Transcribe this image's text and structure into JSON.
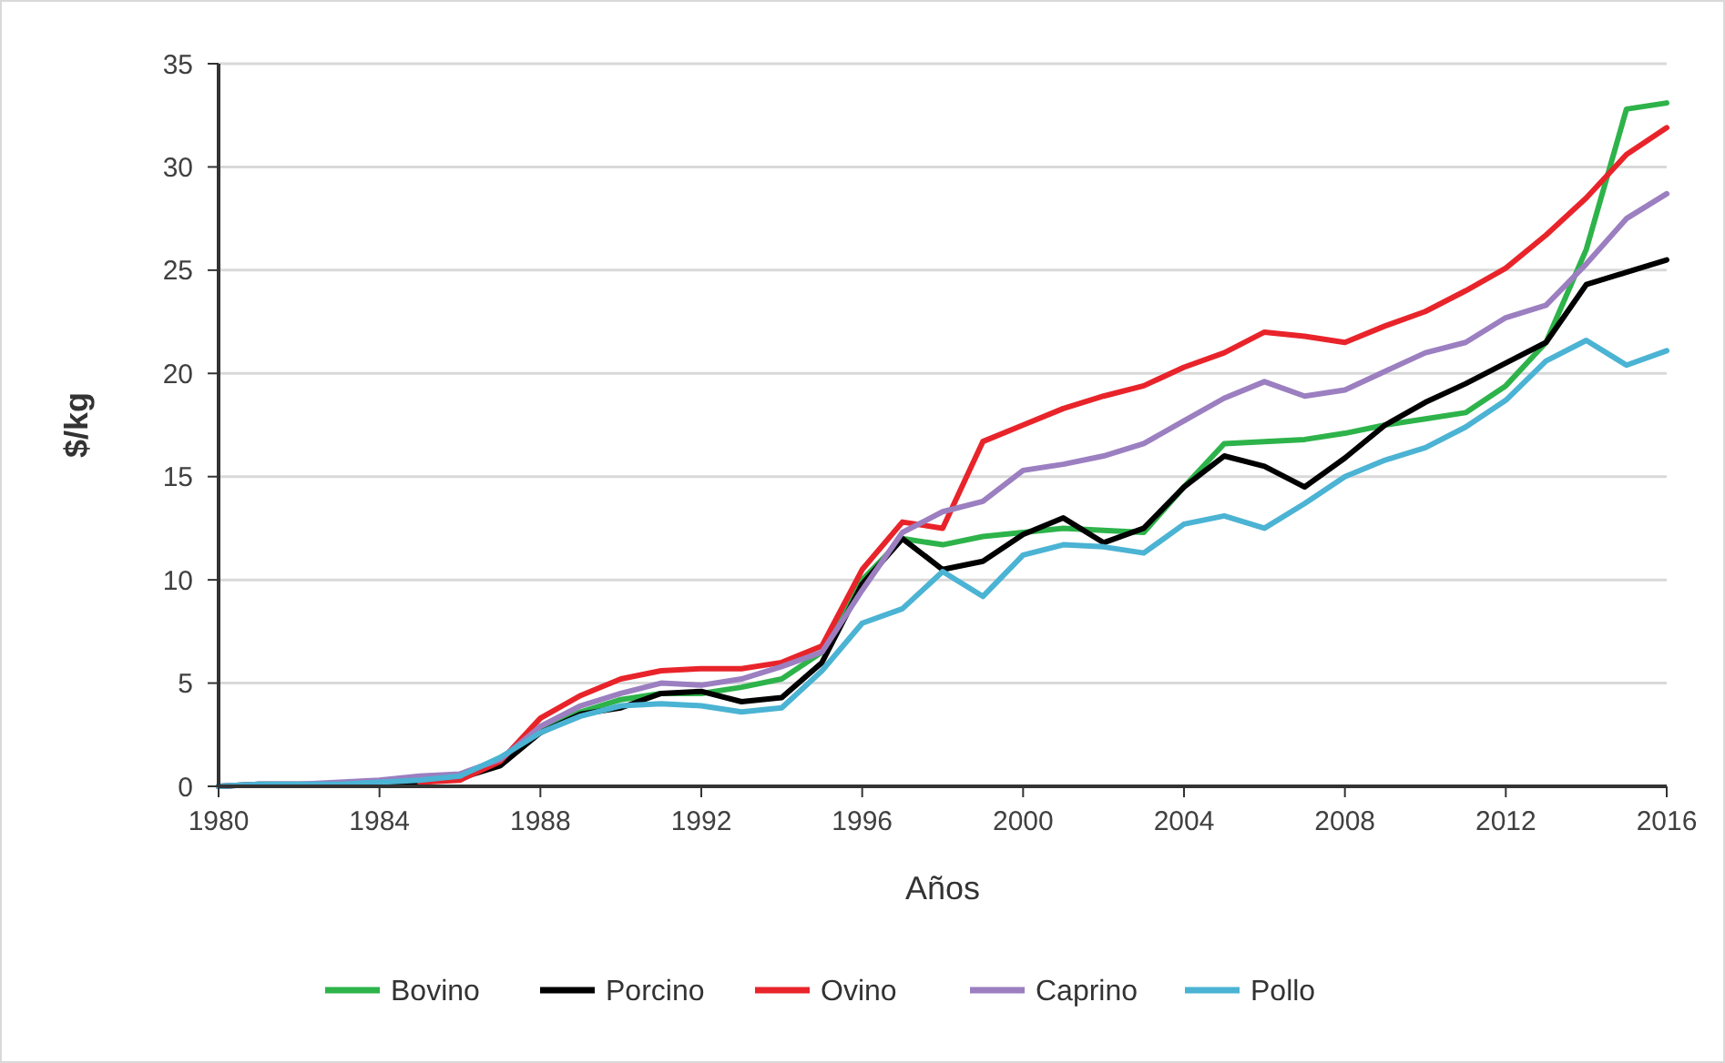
{
  "chart_data": {
    "type": "line",
    "xlabel": "Años",
    "ylabel": "$/kg",
    "x": [
      1980,
      1981,
      1982,
      1983,
      1984,
      1985,
      1986,
      1987,
      1988,
      1989,
      1990,
      1991,
      1992,
      1993,
      1994,
      1995,
      1996,
      1997,
      1998,
      1999,
      2000,
      2001,
      2002,
      2003,
      2004,
      2005,
      2006,
      2007,
      2008,
      2009,
      2010,
      2011,
      2012,
      2013,
      2014,
      2015,
      2016
    ],
    "xlim": [
      1980,
      2016
    ],
    "xticks": [
      1980,
      1984,
      1988,
      1992,
      1996,
      2000,
      2004,
      2008,
      2012,
      2016
    ],
    "ylim": [
      0,
      35
    ],
    "yticks": [
      0,
      5,
      10,
      15,
      20,
      25,
      30,
      35
    ],
    "grid": "y",
    "legend": "bottom",
    "line_style": "solid",
    "series": [
      {
        "name": "Bovino",
        "color": "#2db34a",
        "values": [
          null,
          null,
          null,
          null,
          null,
          null,
          null,
          1.2,
          2.8,
          3.6,
          4.2,
          4.5,
          4.5,
          4.8,
          5.2,
          6.5,
          10,
          12,
          11.7,
          12.1,
          12.3,
          12.5,
          12.4,
          12.3,
          14.5,
          16.6,
          16.7,
          16.8,
          17.1,
          17.5,
          17.8,
          18.1,
          19.4,
          21.5,
          26,
          32.8,
          33.1
        ]
      },
      {
        "name": "Porcino",
        "color": "#000000",
        "values": [
          0,
          0.1,
          0.1,
          0.1,
          0.1,
          0.2,
          0.4,
          1.0,
          2.6,
          3.5,
          3.8,
          4.5,
          4.6,
          4.1,
          4.3,
          6,
          9.8,
          12,
          10.5,
          10.9,
          12.2,
          13,
          11.8,
          12.5,
          14.5,
          16,
          15.5,
          14.5,
          15.9,
          17.5,
          18.6,
          19.5,
          20.5,
          21.5,
          24.3,
          24.9,
          25.5
        ]
      },
      {
        "name": "Ovino",
        "color": "#e8242a",
        "values": [
          null,
          null,
          null,
          null,
          null,
          0.2,
          0.3,
          1.2,
          3.3,
          4.4,
          5.2,
          5.6,
          5.7,
          5.7,
          6,
          6.8,
          10.5,
          12.8,
          12.5,
          16.7,
          17.5,
          18.3,
          18.9,
          19.4,
          20.3,
          21,
          22,
          21.8,
          21.5,
          22.3,
          23,
          24,
          25.1,
          26.7,
          28.5,
          30.6,
          31.9
        ]
      },
      {
        "name": "Caprino",
        "color": "#9b7fc0",
        "values": [
          0,
          0.1,
          0.1,
          0.2,
          0.3,
          0.5,
          0.6,
          1.3,
          2.9,
          3.9,
          4.5,
          5,
          4.9,
          5.2,
          5.8,
          6.5,
          9.5,
          12.3,
          13.3,
          13.8,
          15.3,
          15.6,
          16,
          16.6,
          17.7,
          18.8,
          19.6,
          18.9,
          19.2,
          20.1,
          21,
          21.5,
          22.7,
          23.3,
          25.3,
          27.5,
          28.7
        ]
      },
      {
        "name": "Pollo",
        "color": "#4bb3d3",
        "values": [
          0,
          0.1,
          0.1,
          0.1,
          0.2,
          0.3,
          0.5,
          1.4,
          2.6,
          3.4,
          3.9,
          4,
          3.9,
          3.6,
          3.8,
          5.6,
          7.9,
          8.6,
          10.4,
          9.2,
          11.2,
          11.7,
          11.6,
          11.3,
          12.7,
          13.1,
          12.5,
          13.7,
          15,
          15.8,
          16.4,
          17.4,
          18.7,
          20.6,
          21.6,
          20.4,
          21.1
        ]
      }
    ]
  }
}
